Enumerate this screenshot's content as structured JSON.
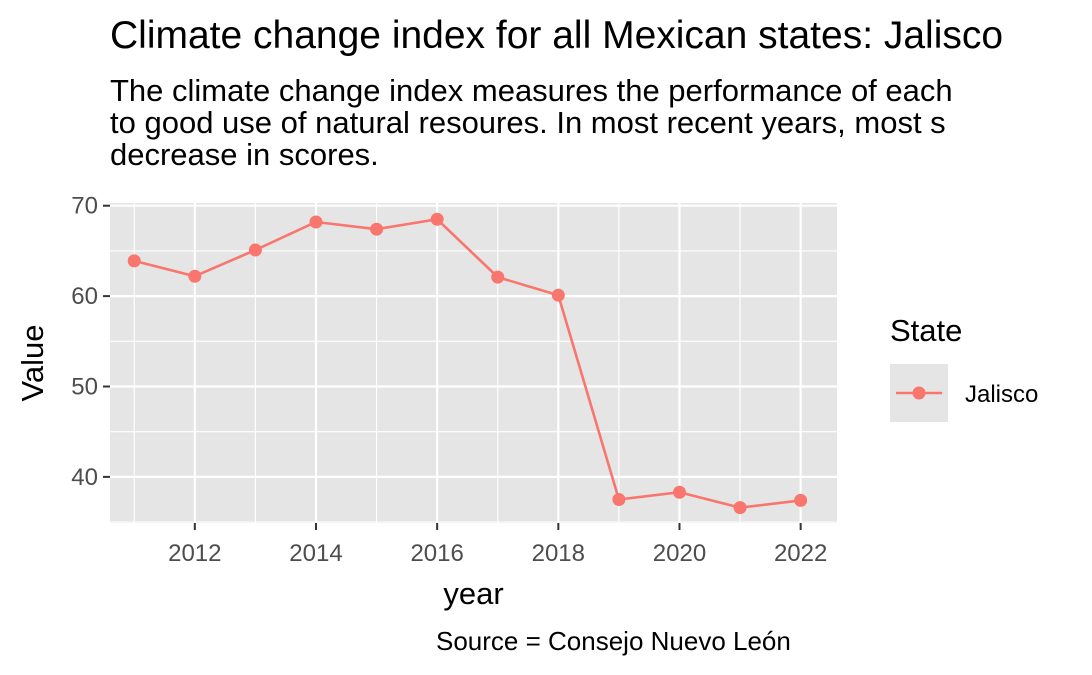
{
  "title": "Climate change index for all Mexican states: Jalisco",
  "subtitle_lines": [
    "The climate change index measures the performance of each",
    "to good use of natural resoures. In most recent years, most s",
    "decrease in scores."
  ],
  "caption": "Source = Consejo Nuevo León",
  "colors": {
    "panel": "#e5e5e5",
    "grid": "#ffffff",
    "series": "#f8766d",
    "tick": "#4d4d4d"
  },
  "chart_data": {
    "type": "line",
    "xlabel": "year",
    "ylabel": "Value",
    "xlim": [
      2010.6,
      2022.6
    ],
    "ylim": [
      34.9,
      70.3
    ],
    "x_ticks": [
      2012,
      2014,
      2016,
      2018,
      2020,
      2022
    ],
    "y_ticks": [
      40,
      50,
      60,
      70
    ],
    "grid": true,
    "legend": {
      "title": "State",
      "position": "right"
    },
    "series": [
      {
        "name": "Jalisco",
        "color": "#f8766d",
        "x": [
          2011,
          2012,
          2013,
          2014,
          2015,
          2016,
          2017,
          2018,
          2019,
          2020,
          2021,
          2022
        ],
        "y": [
          63.9,
          62.2,
          65.1,
          68.2,
          67.4,
          68.5,
          62.1,
          60.1,
          37.5,
          38.3,
          36.6,
          37.4
        ]
      }
    ]
  }
}
